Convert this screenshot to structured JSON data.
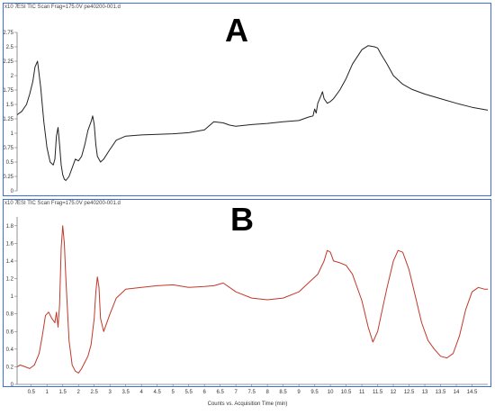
{
  "chart_data": [
    {
      "type": "line",
      "panel_label": "A",
      "header": "ESI TIC Scan Frag=175.0V pe40200-001.d",
      "y_exponent": "x10 7",
      "line_color": "#222222",
      "ylim": [
        0,
        2.75
      ],
      "yticks": [
        0,
        0.25,
        0.5,
        0.75,
        1,
        1.25,
        1.5,
        1.75,
        2,
        2.25,
        2.5,
        2.75
      ],
      "ytick_labels": [
        "0",
        "0.25",
        "0.5",
        "0.75",
        "1",
        "1.25",
        "1.5",
        "1.75",
        "2",
        "2.25",
        "2.5",
        "2.75"
      ],
      "xlim": [
        0.05,
        15.0
      ],
      "x": [
        0.05,
        0.2,
        0.35,
        0.45,
        0.55,
        0.62,
        0.7,
        0.8,
        0.9,
        1.0,
        1.1,
        1.2,
        1.25,
        1.3,
        1.35,
        1.4,
        1.45,
        1.5,
        1.55,
        1.6,
        1.7,
        1.8,
        1.9,
        2.0,
        2.1,
        2.2,
        2.3,
        2.4,
        2.45,
        2.5,
        2.55,
        2.6,
        2.7,
        2.8,
        3.0,
        3.2,
        3.5,
        4.0,
        4.5,
        5.0,
        5.5,
        6.0,
        6.3,
        6.6,
        6.8,
        7.0,
        7.5,
        8.0,
        8.5,
        9.0,
        9.3,
        9.45,
        9.5,
        9.55,
        9.6,
        9.7,
        9.75,
        9.8,
        9.9,
        10.0,
        10.1,
        10.3,
        10.5,
        10.7,
        11.0,
        11.2,
        11.4,
        11.5,
        11.6,
        11.8,
        12.0,
        12.3,
        12.6,
        13.0,
        13.5,
        14.0,
        14.5,
        14.8,
        15.0
      ],
      "values": [
        1.32,
        1.38,
        1.5,
        1.68,
        1.9,
        2.15,
        2.25,
        1.8,
        1.2,
        0.75,
        0.5,
        0.45,
        0.55,
        0.95,
        1.1,
        0.8,
        0.45,
        0.28,
        0.2,
        0.18,
        0.25,
        0.4,
        0.55,
        0.52,
        0.6,
        0.8,
        1.05,
        1.2,
        1.3,
        1.15,
        0.8,
        0.6,
        0.5,
        0.55,
        0.72,
        0.88,
        0.95,
        0.97,
        0.98,
        0.99,
        1.01,
        1.06,
        1.2,
        1.18,
        1.14,
        1.12,
        1.15,
        1.17,
        1.2,
        1.22,
        1.28,
        1.3,
        1.42,
        1.35,
        1.52,
        1.65,
        1.72,
        1.6,
        1.52,
        1.55,
        1.6,
        1.75,
        1.95,
        2.2,
        2.45,
        2.52,
        2.5,
        2.48,
        2.38,
        2.2,
        2.0,
        1.85,
        1.76,
        1.68,
        1.6,
        1.52,
        1.45,
        1.42,
        1.4
      ]
    },
    {
      "type": "line",
      "panel_label": "B",
      "header": "ESI TIC Scan Frag=175.0V pe40200-001.d",
      "y_exponent": "x10 7",
      "line_color": "#c0392b",
      "ylim": [
        0,
        1.9
      ],
      "yticks": [
        0,
        0.2,
        0.4,
        0.6,
        0.8,
        1,
        1.2,
        1.4,
        1.6,
        1.8
      ],
      "ytick_labels": [
        "0",
        "0.2",
        "0.4",
        "0.6",
        "0.8",
        "1",
        "1.2",
        "1.4",
        "1.6",
        "1.8"
      ],
      "xlim": [
        0.05,
        15.0
      ],
      "x": [
        0.05,
        0.15,
        0.3,
        0.45,
        0.6,
        0.75,
        0.85,
        0.95,
        1.05,
        1.15,
        1.25,
        1.3,
        1.35,
        1.4,
        1.45,
        1.5,
        1.55,
        1.6,
        1.7,
        1.8,
        1.9,
        2.0,
        2.1,
        2.2,
        2.3,
        2.4,
        2.5,
        2.55,
        2.6,
        2.65,
        2.7,
        2.8,
        3.0,
        3.2,
        3.5,
        4.0,
        4.5,
        5.0,
        5.5,
        6.0,
        6.3,
        6.6,
        7.0,
        7.5,
        8.0,
        8.5,
        9.0,
        9.3,
        9.6,
        9.8,
        9.9,
        10.0,
        10.1,
        10.3,
        10.5,
        10.7,
        11.0,
        11.2,
        11.35,
        11.5,
        11.65,
        11.8,
        12.0,
        12.15,
        12.3,
        12.5,
        12.7,
        12.9,
        13.1,
        13.3,
        13.5,
        13.7,
        13.9,
        14.1,
        14.3,
        14.5,
        14.7,
        14.9,
        15.0
      ],
      "values": [
        0.2,
        0.22,
        0.2,
        0.18,
        0.22,
        0.35,
        0.55,
        0.78,
        0.82,
        0.75,
        0.7,
        0.82,
        0.65,
        0.9,
        1.55,
        1.8,
        1.6,
        1.2,
        0.5,
        0.22,
        0.15,
        0.13,
        0.18,
        0.25,
        0.32,
        0.45,
        0.75,
        1.05,
        1.22,
        1.1,
        0.75,
        0.6,
        0.8,
        0.98,
        1.08,
        1.1,
        1.12,
        1.13,
        1.1,
        1.11,
        1.12,
        1.15,
        1.05,
        0.98,
        0.96,
        0.98,
        1.05,
        1.15,
        1.25,
        1.4,
        1.52,
        1.5,
        1.4,
        1.38,
        1.35,
        1.25,
        0.95,
        0.65,
        0.48,
        0.6,
        0.85,
        1.1,
        1.4,
        1.52,
        1.5,
        1.3,
        1.0,
        0.7,
        0.5,
        0.4,
        0.32,
        0.3,
        0.35,
        0.55,
        0.85,
        1.05,
        1.1,
        1.08,
        1.08
      ]
    }
  ],
  "x_axis": {
    "ticks": [
      0.5,
      1,
      1.5,
      2,
      2.5,
      3,
      3.5,
      4,
      4.5,
      5,
      5.5,
      6,
      6.5,
      7,
      7.5,
      8,
      8.5,
      9,
      9.5,
      10,
      10.5,
      11,
      11.5,
      12,
      12.5,
      13,
      13.5,
      14,
      14.5
    ],
    "tick_labels": [
      "0.5",
      "1",
      "1.5",
      "2",
      "2.5",
      "3",
      "3.5",
      "4",
      "4.5",
      "5",
      "5.5",
      "6",
      "6.5",
      "7",
      "7.5",
      "8",
      "8.5",
      "9",
      "9.5",
      "10",
      "10.5",
      "11",
      "11.5",
      "12",
      "12.5",
      "13",
      "13.5",
      "14",
      "14.5"
    ],
    "xlabel": "Counts vs. Acquisition Time (min)"
  }
}
